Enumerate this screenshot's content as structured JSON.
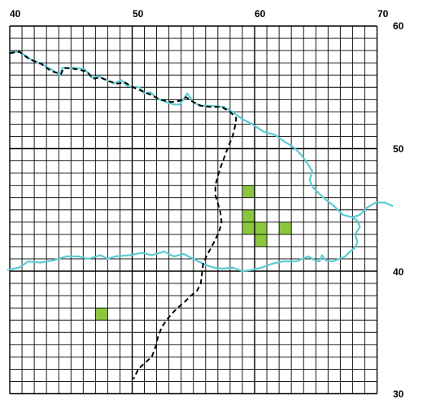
{
  "grid": {
    "lon_min": 40,
    "lon_max": 70,
    "lat_min": 30,
    "lat_max": 60,
    "cell_degrees": 1,
    "line_color": "#000000"
  },
  "top_labels": [
    "40",
    "50",
    "60",
    "70"
  ],
  "right_labels": [
    "60",
    "50",
    "40",
    "30"
  ],
  "colors": {
    "coastline": "#5ccbd3",
    "border": "#000000",
    "occurrence_cell": "#8cc63f"
  },
  "occurrence_cells": [
    {
      "lon": 59,
      "lat": 46
    },
    {
      "lon": 59,
      "lat": 44
    },
    {
      "lon": 59,
      "lat": 43
    },
    {
      "lon": 60,
      "lat": 43
    },
    {
      "lon": 60,
      "lat": 42
    },
    {
      "lon": 62,
      "lat": 43
    },
    {
      "lon": 47,
      "lat": 36
    }
  ],
  "coastlines": {
    "north": [
      [
        40,
        57.9
      ],
      [
        40.8,
        57.9
      ],
      [
        41.7,
        57.3
      ],
      [
        42.8,
        56.8
      ],
      [
        43.5,
        56.4
      ],
      [
        44.1,
        56.0
      ],
      [
        44.3,
        56.6
      ],
      [
        45.2,
        56.6
      ],
      [
        46.1,
        56.5
      ],
      [
        46.7,
        55.8
      ],
      [
        47.3,
        55.9
      ],
      [
        47.9,
        55.6
      ],
      [
        48.5,
        55.3
      ],
      [
        49.1,
        55.6
      ],
      [
        49.6,
        55.1
      ],
      [
        50.6,
        55.0
      ],
      [
        51.0,
        54.5
      ],
      [
        51.5,
        54.6
      ],
      [
        52.0,
        54.1
      ],
      [
        52.8,
        53.8
      ],
      [
        53.4,
        53.6
      ],
      [
        53.9,
        53.6
      ],
      [
        54.5,
        54.5
      ],
      [
        55.0,
        53.8
      ],
      [
        55.5,
        53.5
      ],
      [
        56.5,
        53.5
      ],
      [
        57.5,
        53.4
      ],
      [
        58.2,
        53.0
      ],
      [
        59.0,
        52.4
      ],
      [
        59.8,
        52.0
      ],
      [
        60.7,
        51.4
      ],
      [
        61.7,
        51.1
      ],
      [
        62.4,
        50.6
      ],
      [
        63.2,
        50.1
      ],
      [
        63.8,
        49.5
      ],
      [
        64.3,
        48.8
      ],
      [
        64.7,
        48.2
      ],
      [
        64.5,
        47.4
      ],
      [
        64.8,
        46.8
      ],
      [
        65.6,
        46.0
      ],
      [
        66.5,
        45.3
      ],
      [
        67.2,
        44.6
      ],
      [
        68.0,
        44.4
      ],
      [
        68.6,
        44.6
      ],
      [
        69.2,
        45.2
      ],
      [
        69.9,
        45.6
      ],
      [
        70.6,
        45.6
      ],
      [
        71.3,
        45.3
      ]
    ],
    "east_loop": [
      [
        68.0,
        44.4
      ],
      [
        68.4,
        44.1
      ],
      [
        68.6,
        43.6
      ],
      [
        68.2,
        43.0
      ],
      [
        68.4,
        42.4
      ],
      [
        68.2,
        41.9
      ],
      [
        67.8,
        41.6
      ],
      [
        67.4,
        41.2
      ],
      [
        66.9,
        41.0
      ],
      [
        66.4,
        40.8
      ],
      [
        65.8,
        40.9
      ],
      [
        65.5,
        41.3
      ],
      [
        65.3,
        40.8
      ],
      [
        64.9,
        40.9
      ],
      [
        64.4,
        41.2
      ]
    ],
    "south": [
      [
        39.8,
        40.1
      ],
      [
        40.8,
        40.3
      ],
      [
        41.5,
        40.8
      ],
      [
        42.5,
        40.7
      ],
      [
        43.6,
        40.9
      ],
      [
        44.6,
        41.2
      ],
      [
        45.6,
        41.2
      ],
      [
        46.4,
        41.0
      ],
      [
        47.4,
        41.3
      ],
      [
        48.0,
        41.0
      ],
      [
        48.6,
        41.2
      ],
      [
        49.8,
        41.3
      ],
      [
        50.8,
        41.5
      ],
      [
        51.6,
        41.3
      ],
      [
        52.6,
        41.6
      ],
      [
        53.4,
        41.2
      ],
      [
        54.2,
        41.4
      ],
      [
        55.0,
        41.0
      ],
      [
        55.8,
        40.6
      ],
      [
        56.6,
        40.3
      ],
      [
        57.4,
        40.2
      ],
      [
        58.2,
        40.3
      ],
      [
        59.0,
        40.0
      ],
      [
        59.8,
        40.1
      ],
      [
        60.6,
        40.3
      ],
      [
        61.4,
        40.6
      ],
      [
        62.3,
        40.8
      ],
      [
        63.4,
        40.8
      ],
      [
        64.4,
        41.2
      ],
      [
        64.9,
        40.9
      ]
    ]
  },
  "borders": {
    "north": [
      [
        40,
        57.8
      ],
      [
        40.8,
        57.9
      ],
      [
        41.6,
        57.3
      ],
      [
        42.6,
        56.9
      ],
      [
        43.4,
        56.3
      ],
      [
        44.2,
        56.1
      ],
      [
        44.4,
        56.6
      ],
      [
        45.3,
        56.5
      ],
      [
        46.3,
        56.3
      ],
      [
        46.8,
        55.7
      ],
      [
        47.4,
        55.8
      ],
      [
        48.1,
        55.5
      ],
      [
        48.8,
        55.3
      ],
      [
        49.4,
        55.4
      ],
      [
        50.1,
        55.0
      ],
      [
        50.8,
        54.7
      ],
      [
        51.5,
        54.4
      ],
      [
        52.3,
        54.0
      ],
      [
        53.2,
        53.8
      ],
      [
        53.9,
        53.9
      ],
      [
        54.4,
        54.2
      ],
      [
        55.0,
        53.8
      ],
      [
        55.6,
        53.5
      ],
      [
        56.4,
        53.4
      ],
      [
        57.3,
        53.4
      ],
      [
        58.0,
        53.0
      ],
      [
        58.5,
        52.5
      ],
      [
        58.4,
        51.8
      ],
      [
        58.2,
        51.0
      ],
      [
        57.9,
        50.3
      ],
      [
        57.6,
        49.5
      ],
      [
        57.3,
        48.7
      ],
      [
        57.0,
        47.8
      ],
      [
        56.8,
        47.0
      ],
      [
        56.8,
        46.2
      ],
      [
        57.0,
        45.5
      ],
      [
        57.2,
        44.8
      ],
      [
        57.3,
        44.0
      ],
      [
        57.1,
        43.2
      ],
      [
        56.8,
        42.6
      ],
      [
        56.5,
        42.0
      ],
      [
        56.1,
        41.3
      ],
      [
        55.8,
        40.6
      ],
      [
        55.7,
        39.8
      ],
      [
        55.6,
        39.0
      ],
      [
        55.3,
        38.4
      ],
      [
        54.8,
        38.0
      ],
      [
        54.3,
        37.5
      ],
      [
        53.7,
        37.0
      ],
      [
        53.3,
        36.6
      ],
      [
        52.8,
        36.0
      ],
      [
        52.4,
        35.4
      ],
      [
        52.1,
        34.6
      ],
      [
        51.9,
        33.8
      ],
      [
        51.6,
        33.0
      ],
      [
        51.0,
        32.5
      ],
      [
        50.5,
        32.0
      ],
      [
        50.1,
        31.2
      ]
    ]
  }
}
